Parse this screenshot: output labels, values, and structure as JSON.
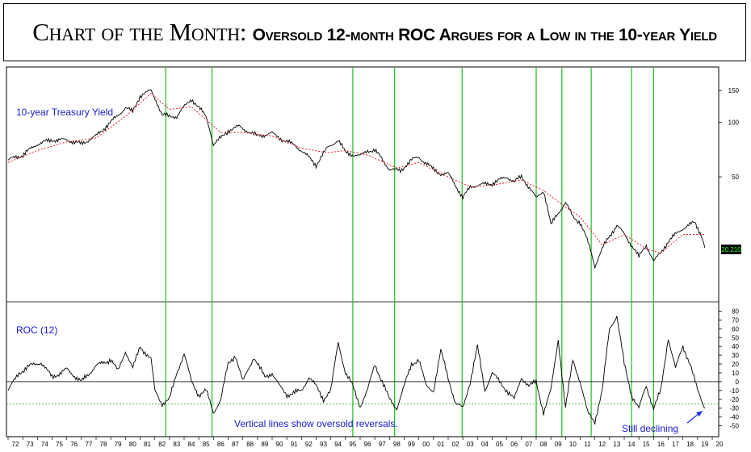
{
  "title": {
    "main": "Chart of the Month:",
    "subtitle": "Oversold 12-month ROC Argues for a Low in the 10-year Yield"
  },
  "chart_data": [
    {
      "type": "line",
      "panel": "upper",
      "label": "10-year Treasury Yield",
      "y_scale": "log",
      "ylim": [
        14,
        170
      ],
      "yticks": [
        150,
        100,
        50
      ],
      "last_value_label": "20.210",
      "series": [
        {
          "name": "10-year Treasury Yield",
          "color": "#000000",
          "style": "solid"
        },
        {
          "name": "",
          "color": "#e8202a",
          "style": "dotted"
        }
      ],
      "x": [
        1972.0,
        1973.0,
        1974.0,
        1975.0,
        1976.0,
        1977.0,
        1978.0,
        1979.0,
        1980.0,
        1980.5,
        1981.0,
        1981.75,
        1982.5,
        1983.0,
        1983.5,
        1984.5,
        1985.0,
        1985.5,
        1986.0,
        1986.5,
        1987.0,
        1987.75,
        1988.5,
        1989.0,
        1990.0,
        1990.75,
        1991.5,
        1992.0,
        1993.0,
        1993.75,
        1994.5,
        1995.0,
        1996.0,
        1996.5,
        1997.0,
        1998.0,
        1998.75,
        1999.5,
        2000.0,
        2001.0,
        2001.5,
        2002.0,
        2003.0,
        2003.5,
        2004.0,
        2005.0,
        2006.0,
        2006.5,
        2007.0,
        2008.0,
        2008.5,
        2009.0,
        2010.0,
        2010.5,
        2011.0,
        2012.0,
        2012.5,
        2013.5,
        2014.0,
        2015.0,
        2015.5,
        2016.0,
        2016.5,
        2017.0,
        2018.0,
        2018.8,
        2019.25,
        2019.5
      ],
      "y": [
        62,
        66,
        76,
        80,
        80,
        76,
        84,
        100,
        120,
        115,
        140,
        150,
        110,
        108,
        108,
        135,
        120,
        108,
        75,
        82,
        90,
        95,
        88,
        84,
        87,
        80,
        75,
        70,
        58,
        72,
        80,
        68,
        65,
        70,
        70,
        55,
        54,
        62,
        64,
        55,
        52,
        52,
        38,
        44,
        45,
        46,
        50,
        47,
        50,
        38,
        42,
        27,
        36,
        30,
        28,
        16,
        20,
        27,
        24,
        18,
        21,
        17,
        19,
        22,
        26,
        28,
        24,
        20.21
      ],
      "ma_x": [
        1972.0,
        1974.0,
        1976.0,
        1978.0,
        1980.0,
        1981.75,
        1983.0,
        1984.5,
        1986.5,
        1988.0,
        1990.0,
        1992.0,
        1993.75,
        1995.0,
        1996.5,
        1998.5,
        2000.0,
        2002.0,
        2003.5,
        2005.0,
        2007.0,
        2008.5,
        2010.0,
        2011.0,
        2012.5,
        2014.0,
        2015.5,
        2016.5,
        2018.0,
        2019.5
      ],
      "ma_y": [
        60,
        70,
        78,
        82,
        108,
        145,
        118,
        122,
        88,
        88,
        84,
        72,
        68,
        70,
        66,
        56,
        60,
        50,
        44,
        45,
        48,
        42,
        34,
        30,
        21,
        24,
        20,
        19,
        24,
        24
      ]
    },
    {
      "type": "line",
      "panel": "lower",
      "label": "ROC (12)",
      "ylim": [
        -55,
        85
      ],
      "yticks": [
        80,
        70,
        60,
        50,
        40,
        30,
        20,
        10,
        0,
        -10,
        -20,
        -30,
        -40,
        -50
      ],
      "zero_line": 0,
      "oversold_line": -25,
      "annotation": "Vertical lines show oversold reversals.",
      "arrow_label": "Still declining",
      "series": [
        {
          "name": "ROC (12)",
          "color": "#000000",
          "style": "solid"
        }
      ],
      "x": [
        1972.0,
        1972.75,
        1973.5,
        1974.25,
        1975.0,
        1976.0,
        1977.0,
        1978.0,
        1979.0,
        1979.5,
        1980.0,
        1980.5,
        1981.0,
        1981.75,
        1982.0,
        1982.5,
        1983.0,
        1983.5,
        1984.0,
        1984.5,
        1985.0,
        1985.5,
        1986.0,
        1986.5,
        1987.0,
        1987.5,
        1988.0,
        1988.75,
        1989.5,
        1990.0,
        1990.5,
        1991.0,
        1992.0,
        1992.5,
        1993.0,
        1993.5,
        1994.0,
        1994.5,
        1995.0,
        1995.5,
        1996.0,
        1996.5,
        1997.0,
        1997.5,
        1998.0,
        1998.5,
        1999.0,
        1999.5,
        2000.0,
        2000.5,
        2001.0,
        2001.5,
        2002.0,
        2002.5,
        2003.0,
        2003.5,
        2004.0,
        2004.5,
        2005.0,
        2005.5,
        2006.0,
        2006.5,
        2007.0,
        2007.5,
        2008.0,
        2008.5,
        2009.0,
        2009.5,
        2010.0,
        2010.5,
        2011.0,
        2011.5,
        2012.0,
        2012.5,
        2013.0,
        2013.5,
        2014.0,
        2014.5,
        2015.0,
        2015.5,
        2016.0,
        2016.5,
        2017.0,
        2017.5,
        2018.0,
        2018.5,
        2019.0,
        2019.5
      ],
      "y": [
        -10,
        10,
        18,
        22,
        5,
        14,
        0,
        18,
        25,
        12,
        35,
        15,
        40,
        25,
        -10,
        -25,
        -20,
        10,
        32,
        0,
        -15,
        -10,
        -35,
        -20,
        20,
        30,
        0,
        28,
        5,
        10,
        -5,
        -15,
        -10,
        5,
        -5,
        -20,
        -10,
        45,
        10,
        -5,
        -28,
        -10,
        20,
        0,
        -20,
        -30,
        -5,
        20,
        25,
        -5,
        -10,
        35,
        5,
        -25,
        -30,
        0,
        40,
        -10,
        10,
        0,
        -10,
        -20,
        5,
        -5,
        0,
        -35,
        -10,
        48,
        -30,
        25,
        0,
        -35,
        -45,
        -10,
        60,
        75,
        20,
        -15,
        -30,
        -5,
        -30,
        -10,
        50,
        15,
        40,
        20,
        -10,
        -30
      ]
    }
  ],
  "x_axis": {
    "tick_labels": [
      "72",
      "73",
      "74",
      "75",
      "76",
      "77",
      "78",
      "79",
      "80",
      "81",
      "82",
      "83",
      "84",
      "85",
      "86",
      "87",
      "88",
      "89",
      "90",
      "91",
      "92",
      "93",
      "94",
      "95",
      "96",
      "97",
      "98",
      "99",
      "00",
      "01",
      "02",
      "03",
      "04",
      "05",
      "06",
      "07",
      "08",
      "09",
      "10",
      "11",
      "12",
      "13",
      "14",
      "15",
      "16",
      "17",
      "18",
      "19",
      "20"
    ],
    "start_year": 1972,
    "end_year": 2020
  },
  "vertical_lines": [
    1982.75,
    1985.9,
    1995.5,
    1998.35,
    2002.95,
    2008.0,
    2009.75,
    2011.75,
    2014.5,
    2016.0
  ]
}
